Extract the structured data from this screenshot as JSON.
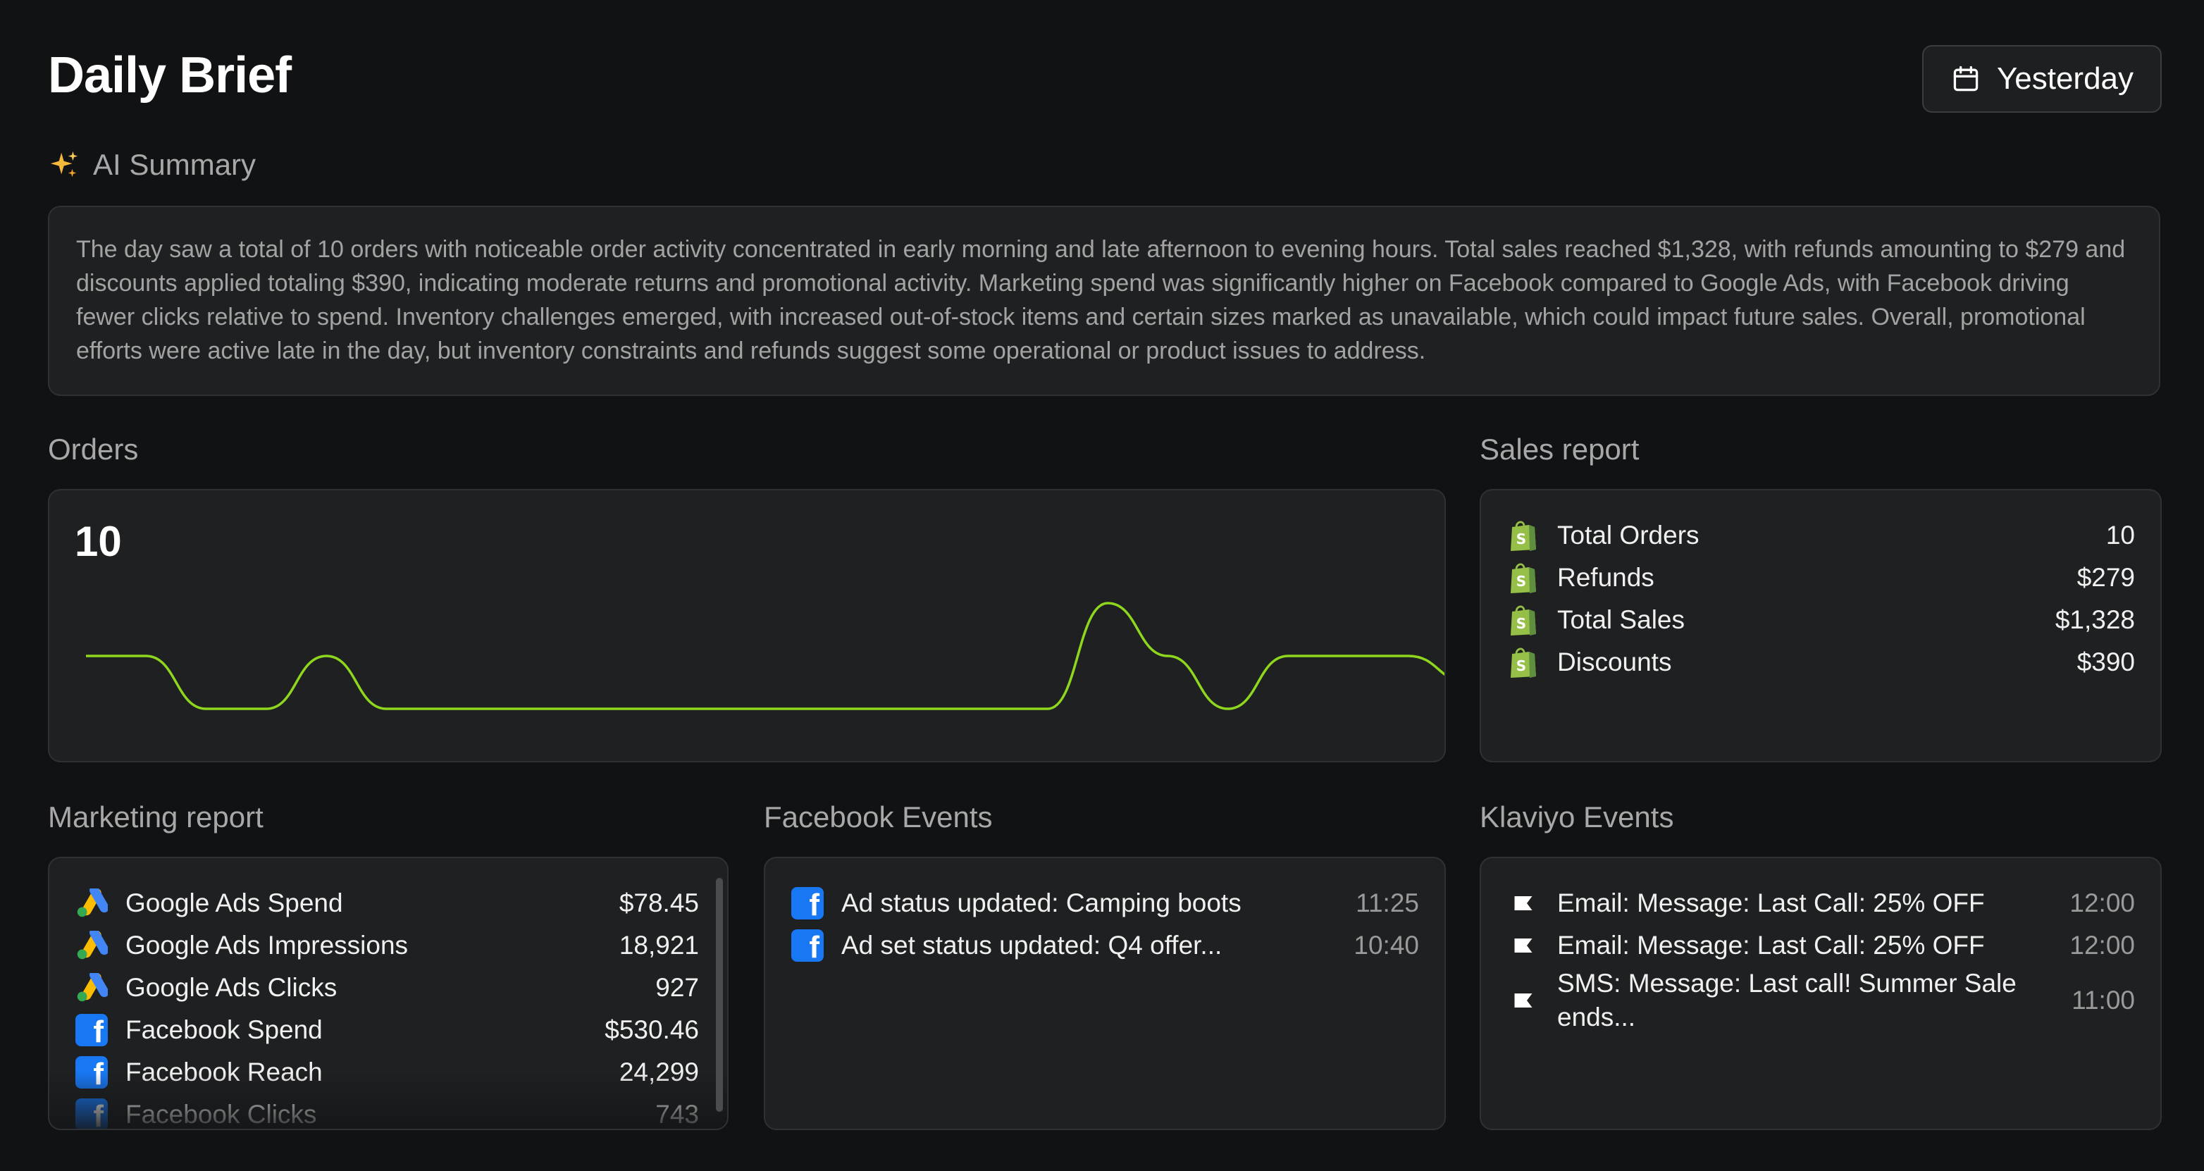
{
  "header": {
    "title": "Daily Brief",
    "date_button": {
      "label": "Yesterday",
      "icon": "calendar-icon"
    }
  },
  "ai_summary": {
    "icon": "sparkles-icon",
    "label": "AI Summary",
    "text": "The day saw a total of 10 orders with noticeable order activity concentrated in early morning and late afternoon to evening hours. Total sales reached $1,328, with refunds amounting to $279 and discounts applied totaling $390, indicating moderate returns and promotional activity. Marketing spend was significantly higher on Facebook compared to Google Ads, with Facebook driving fewer clicks relative to spend. Inventory challenges emerged, with increased out-of-stock items and certain sizes marked as unavailable, which could impact future sales. Overall, promotional efforts were active late in the day, but inventory constraints and refunds suggest some operational or product issues to address."
  },
  "orders": {
    "label": "Orders",
    "count": "10",
    "line_color": "#8fd61e"
  },
  "chart_data": {
    "type": "line",
    "x": [
      0,
      1,
      2,
      3,
      4,
      5,
      6,
      7,
      8,
      9,
      10,
      11,
      12,
      13,
      14,
      15,
      16,
      17,
      18,
      19,
      20,
      21,
      22,
      23
    ],
    "series": [
      {
        "values": [
          1,
          1,
          0,
          0,
          1,
          0,
          0,
          0,
          0,
          0,
          0,
          0,
          0,
          0,
          0,
          0,
          0,
          2,
          1,
          0,
          1,
          1,
          1,
          0.5
        ]
      }
    ],
    "ylim": [
      0,
      2
    ],
    "grid": false,
    "legend": "none"
  },
  "sales_report": {
    "label": "Sales report",
    "icon": "shopify-icon",
    "items": [
      {
        "label": "Total Orders",
        "value": "10"
      },
      {
        "label": "Refunds",
        "value": "$279"
      },
      {
        "label": "Total Sales",
        "value": "$1,328"
      },
      {
        "label": "Discounts",
        "value": "$390"
      }
    ]
  },
  "marketing_report": {
    "label": "Marketing report",
    "items": [
      {
        "icon": "google-ads-icon",
        "label": "Google Ads Spend",
        "value": "$78.45"
      },
      {
        "icon": "google-ads-icon",
        "label": "Google Ads Impressions",
        "value": "18,921"
      },
      {
        "icon": "google-ads-icon",
        "label": "Google Ads Clicks",
        "value": "927"
      },
      {
        "icon": "facebook-icon",
        "label": "Facebook Spend",
        "value": "$530.46"
      },
      {
        "icon": "facebook-icon",
        "label": "Facebook Reach",
        "value": "24,299"
      },
      {
        "icon": "facebook-icon",
        "label": "Facebook Clicks",
        "value": "743"
      }
    ]
  },
  "facebook_events": {
    "label": "Facebook Events",
    "icon": "facebook-icon",
    "items": [
      {
        "label": "Ad status updated: Camping boots",
        "time": "11:25"
      },
      {
        "label": "Ad set status updated: Q4 offer...",
        "time": "10:40"
      }
    ]
  },
  "klaviyo_events": {
    "label": "Klaviyo Events",
    "icon": "klaviyo-flag-icon",
    "items": [
      {
        "label": "Email: Message: Last Call: 25% OFF",
        "time": "12:00"
      },
      {
        "label": "Email: Message: Last Call: 25% OFF",
        "time": "12:00"
      },
      {
        "label": "SMS: Message: Last call! Summer Sale ends...",
        "time": "11:00"
      }
    ]
  },
  "colors": {
    "background": "#111213",
    "card": "#1f2021",
    "accent_green": "#8fd61e",
    "shopify_green": "#95bf47",
    "facebook_blue": "#1877f2"
  }
}
